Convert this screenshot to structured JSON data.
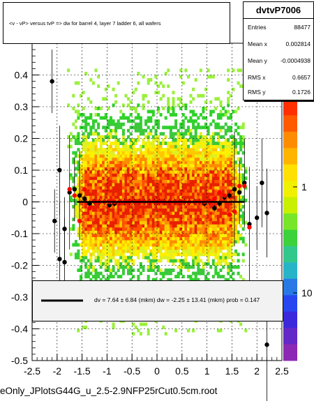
{
  "title": "<v - vP>       versus  tvP =>  dw for barrel 4, layer 7 ladder 6, all wafers",
  "stats": {
    "name": "dvtvP7006",
    "rows": [
      {
        "key": "Entries",
        "value": "88477"
      },
      {
        "key": "Mean x",
        "value": "0.002814"
      },
      {
        "key": "Mean y",
        "value": "-0.0004938"
      },
      {
        "key": "RMS x",
        "value": "0.6657"
      },
      {
        "key": "RMS y",
        "value": "0.1726"
      }
    ]
  },
  "fit_text": "dv =    7.64 ±  6.84 (mkm) dw =   -2.25 ± 13.41 (mkm) prob = 0.147",
  "footer": "eOnly_JPlotsG44G_u_2.5-2.9NFP25rCut0.5cm.root",
  "colors": {
    "black_points": "#000000",
    "red_points": "#ff0000",
    "fit_line": "#000000"
  },
  "chart_data": {
    "type": "heatmap",
    "xlim": [
      -2.5,
      2.5
    ],
    "ylim": [
      -0.5,
      0.5
    ],
    "x_ticks": [
      "-2.5",
      "-2",
      "-1.5",
      "-1",
      "-0.5",
      "0",
      "0.5",
      "1",
      "1.5",
      "2",
      "2.5"
    ],
    "y_ticks": [
      "-0.5",
      "-0.4",
      "-0.3",
      "-0.2",
      "-0.1",
      "0",
      "0.1",
      "0.2",
      "0.3",
      "0.4"
    ],
    "z_scale": "log",
    "z_ticks": [
      "1",
      "10"
    ],
    "grid": true,
    "black_points": [
      [
        -2.05,
        -0.06
      ],
      [
        -1.95,
        0.1
      ],
      [
        -1.95,
        -0.18
      ],
      [
        -1.85,
        -0.085
      ],
      [
        -1.85,
        -0.19
      ],
      [
        -1.75,
        0.03
      ],
      [
        -1.65,
        0.04
      ],
      [
        -1.55,
        0.02
      ],
      [
        -1.45,
        0.01
      ],
      [
        -1.35,
        -0.005
      ],
      [
        -1.25,
        0.0
      ],
      [
        -1.15,
        0.0
      ],
      [
        -1.05,
        0.0
      ],
      [
        -0.95,
        -0.01
      ],
      [
        -0.85,
        -0.005
      ],
      [
        -0.75,
        0.0
      ],
      [
        -0.65,
        0.0
      ],
      [
        -0.55,
        0.0
      ],
      [
        -0.45,
        0.0
      ],
      [
        -0.35,
        0.0
      ],
      [
        -0.25,
        0.0
      ],
      [
        -0.15,
        0.0
      ],
      [
        -0.05,
        0.0
      ],
      [
        0.05,
        0.0
      ],
      [
        0.15,
        0.0
      ],
      [
        0.25,
        0.0
      ],
      [
        0.35,
        0.0
      ],
      [
        0.45,
        0.0
      ],
      [
        0.55,
        0.0
      ],
      [
        0.65,
        0.0
      ],
      [
        0.75,
        0.0
      ],
      [
        0.85,
        0.0
      ],
      [
        0.95,
        -0.005
      ],
      [
        1.05,
        0.0
      ],
      [
        1.15,
        -0.02
      ],
      [
        1.25,
        -0.005
      ],
      [
        1.35,
        0.015
      ],
      [
        1.45,
        0.02
      ],
      [
        1.55,
        0.04
      ],
      [
        1.65,
        0.03
      ],
      [
        1.75,
        0.06
      ],
      [
        1.85,
        -0.07
      ],
      [
        2.0,
        -0.05
      ],
      [
        2.2,
        -0.035
      ],
      [
        2.2,
        -0.45
      ],
      [
        -2.1,
        0.38
      ],
      [
        2.1,
        0.06
      ]
    ],
    "red_points": [
      [
        -1.75,
        0.04
      ],
      [
        -1.65,
        0.02
      ],
      [
        -1.55,
        -0.06
      ],
      [
        -1.45,
        0.04
      ],
      [
        -1.35,
        -0.02
      ],
      [
        -1.25,
        0.0
      ],
      [
        -1.15,
        0.0
      ],
      [
        -1.05,
        0.0
      ],
      [
        -0.95,
        0.0
      ],
      [
        -0.85,
        0.0
      ],
      [
        -0.75,
        0.0
      ],
      [
        -0.65,
        0.0
      ],
      [
        -0.55,
        0.0
      ],
      [
        -0.45,
        0.0
      ],
      [
        -0.35,
        0.0
      ],
      [
        -0.25,
        0.0
      ],
      [
        -0.15,
        0.0
      ],
      [
        -0.05,
        0.0
      ],
      [
        0.05,
        0.0
      ],
      [
        0.15,
        0.0
      ],
      [
        0.25,
        0.0
      ],
      [
        0.35,
        0.0
      ],
      [
        0.45,
        0.0
      ],
      [
        0.55,
        0.0
      ],
      [
        0.65,
        0.0
      ],
      [
        0.75,
        0.0
      ],
      [
        0.85,
        0.0
      ],
      [
        0.95,
        0.0
      ],
      [
        1.05,
        0.0
      ],
      [
        1.15,
        0.01
      ],
      [
        1.25,
        0.03
      ],
      [
        1.35,
        0.02
      ],
      [
        1.45,
        -0.04
      ],
      [
        1.55,
        -0.03
      ],
      [
        1.65,
        0.05
      ],
      [
        1.75,
        0.05
      ],
      [
        1.85,
        -0.08
      ]
    ],
    "fit_line": {
      "x": [
        -1.6,
        1.75
      ],
      "y": [
        0.0,
        0.0
      ]
    }
  }
}
